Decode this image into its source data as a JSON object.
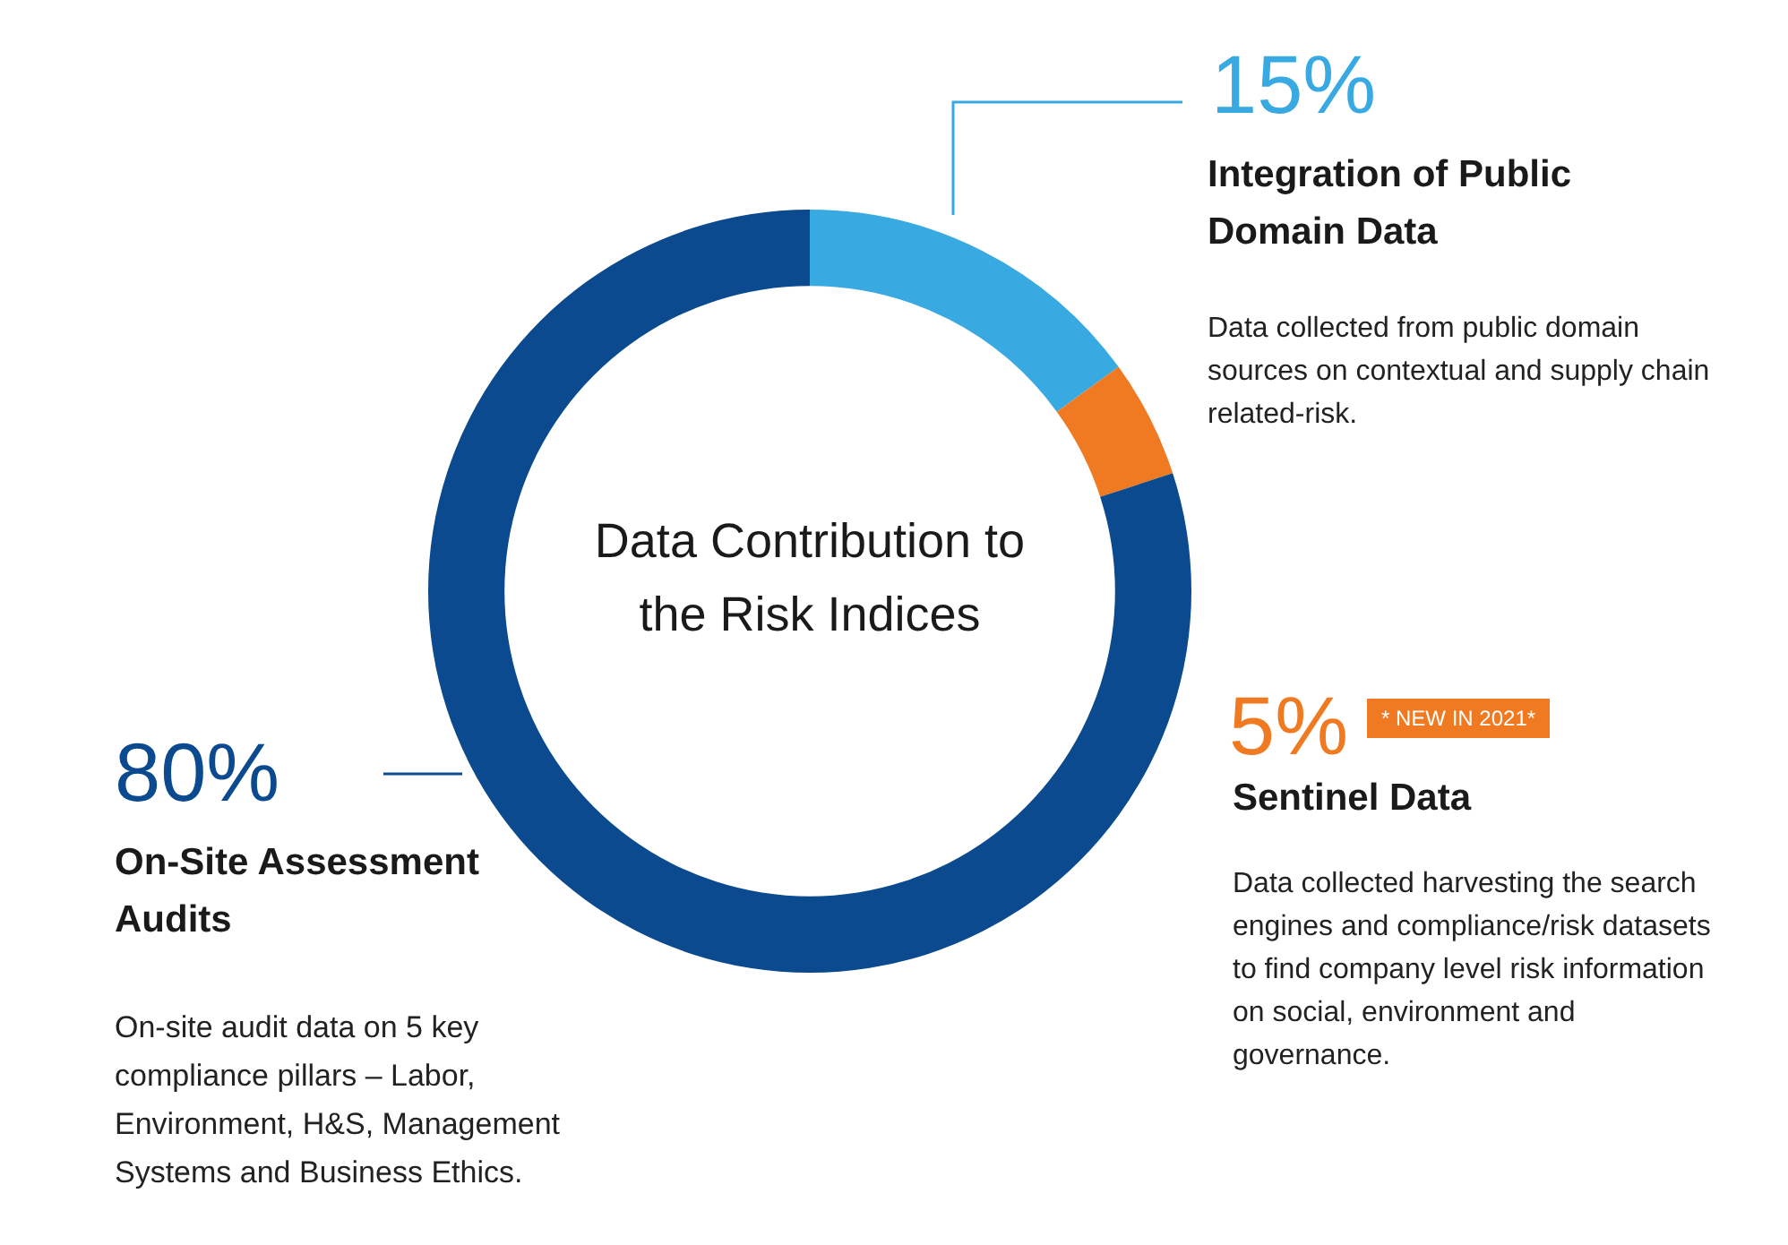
{
  "chart_data": {
    "type": "donut",
    "title": "Data Contribution to the Risk Indices",
    "categories": [
      "Integration of Public Domain Data",
      "Sentinel Data",
      "On-Site Assessment Audits"
    ],
    "values": [
      15,
      5,
      80
    ],
    "colors": [
      "#39a9e1",
      "#f07a22",
      "#0b4a8e"
    ],
    "value_labels": [
      "15%",
      "5%",
      "80%"
    ],
    "annotations": [
      "Data collected from public domain sources on contextual and supply chain related-risk.",
      "* NEW IN 2021*",
      "Data collected harvesting the search engines and compliance/risk datasets to find company level risk information on social, environment and governance.",
      "On-site audit data on 5 key compliance pillars – Labor, Environment, H&S, Management Systems and Business Ethics."
    ]
  }
}
